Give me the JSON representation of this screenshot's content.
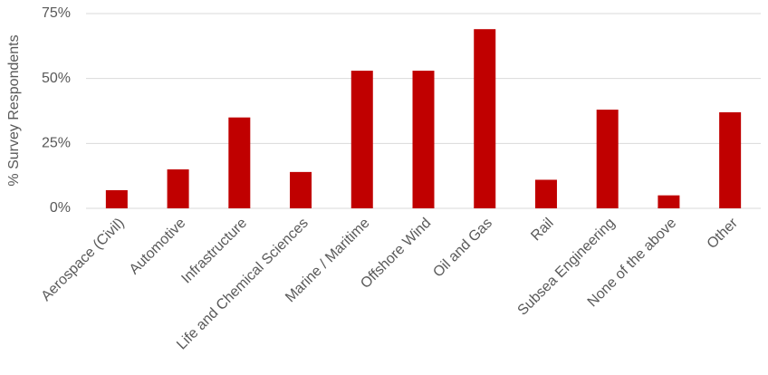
{
  "chart_data": {
    "type": "bar",
    "ylabel": "% Survey Respondents",
    "categories": [
      "Aerospace (Civil)",
      "Automotive",
      "Infrastructure",
      "Life and Chemical Sciences",
      "Marine / Maritime",
      "Offshore Wind",
      "Oil and Gas",
      "Rail",
      "Subsea Engineering",
      "None of the above",
      "Other"
    ],
    "values": [
      7,
      15,
      35,
      14,
      53,
      53,
      69,
      11,
      38,
      5,
      37
    ],
    "color": "#c00000",
    "ylim": [
      0,
      75
    ],
    "yticks": [
      {
        "value": 0,
        "label": "0%"
      },
      {
        "value": 25,
        "label": "25%"
      },
      {
        "value": 50,
        "label": "50%"
      },
      {
        "value": 75,
        "label": "75%"
      }
    ],
    "grid": true
  }
}
